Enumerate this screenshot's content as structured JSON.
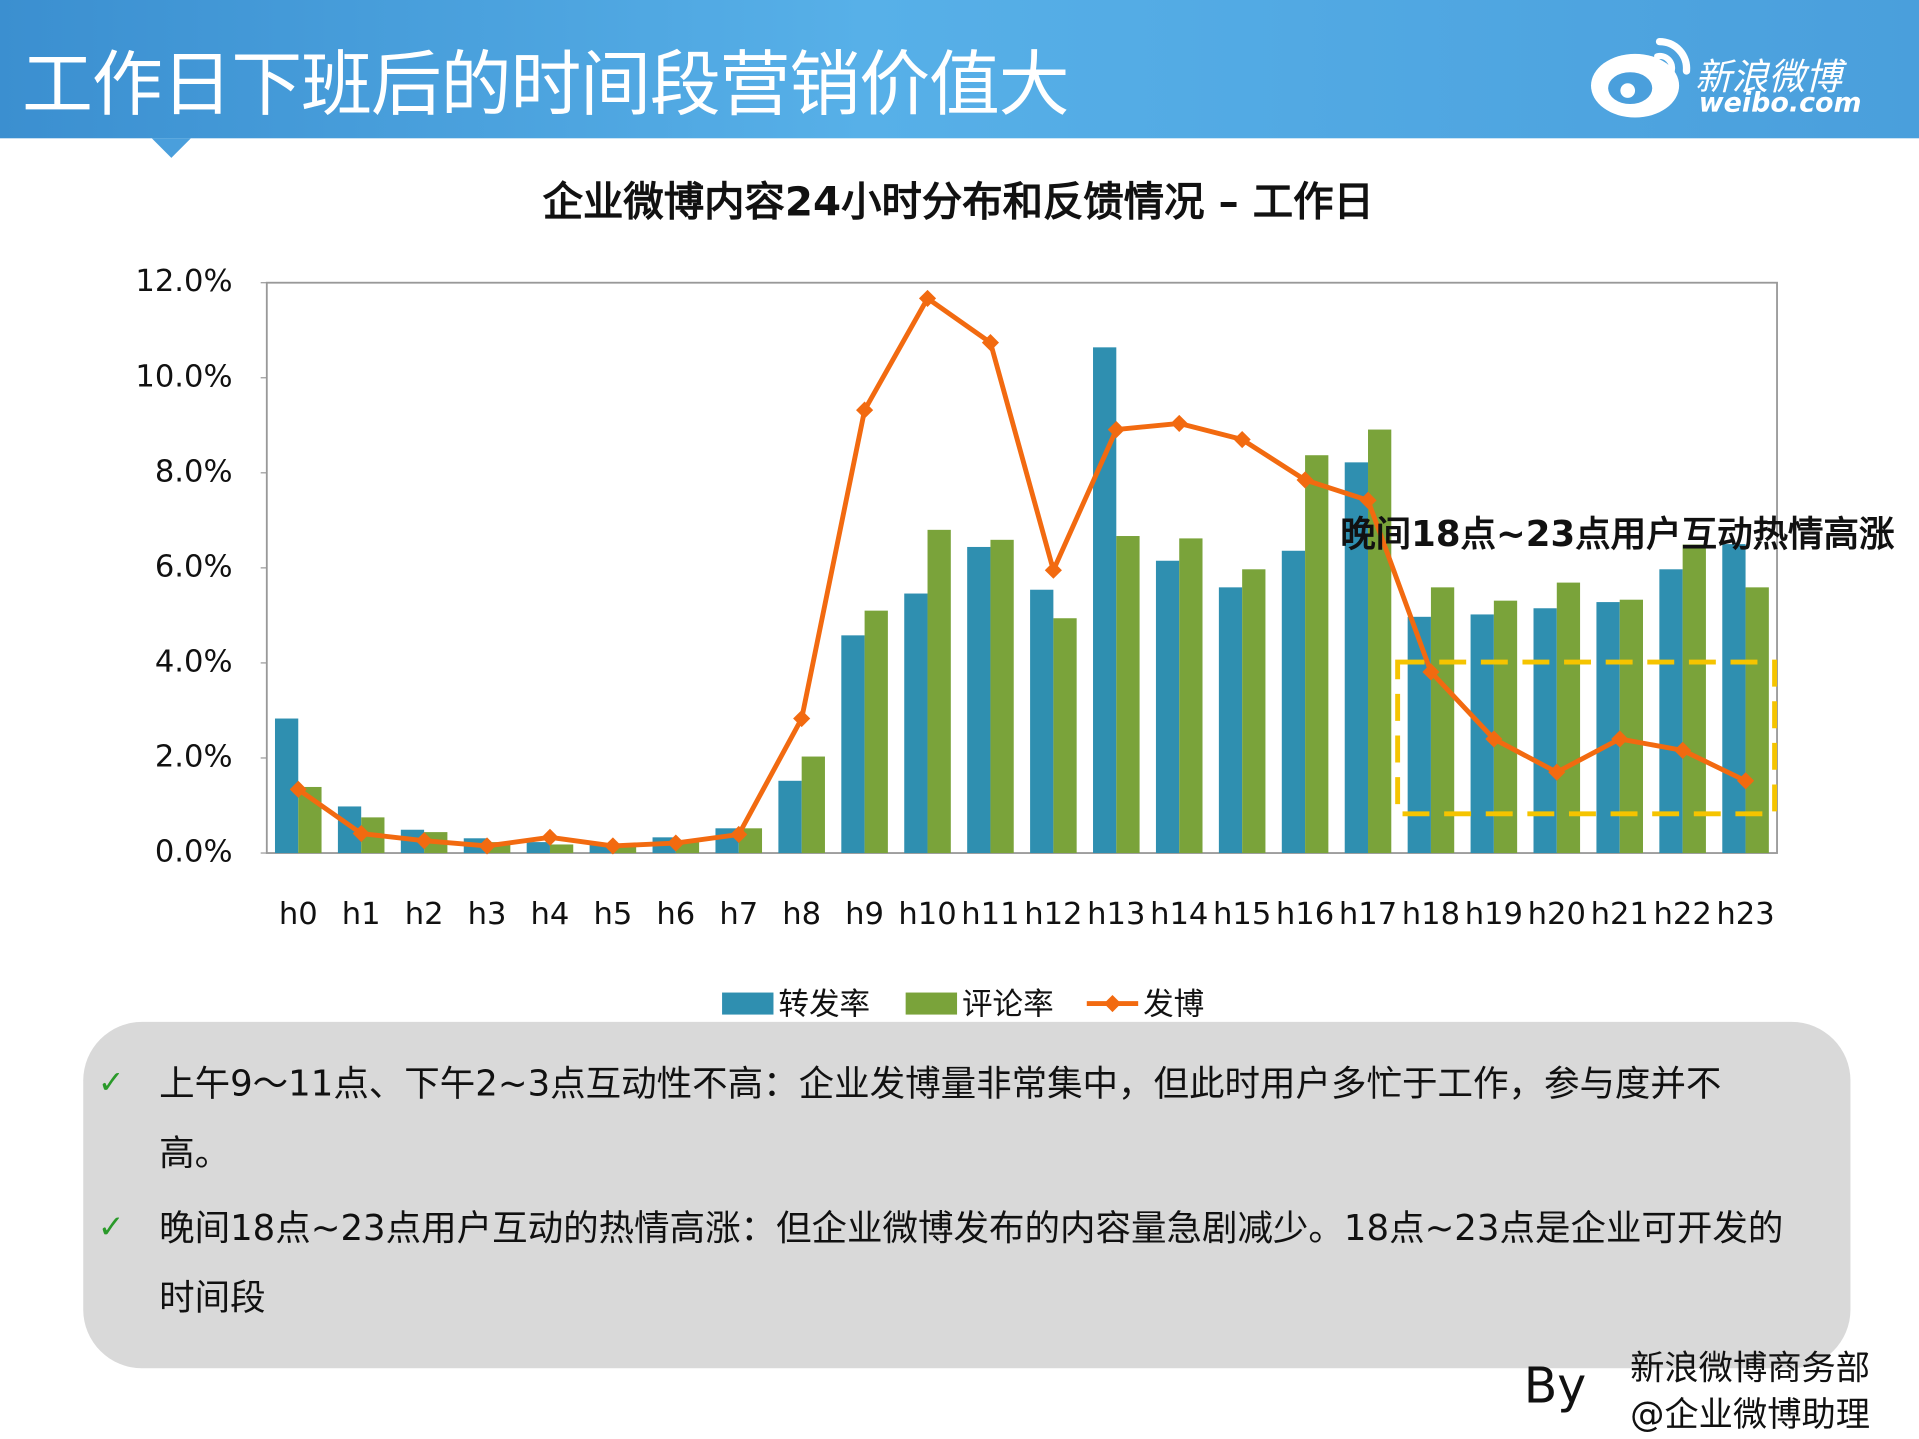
{
  "header": {
    "title": "工作日下班后的时间段营销价值大",
    "logo_name": "新浪微博",
    "logo_url": "weibo.com"
  },
  "chart_data": {
    "type": "bar-line",
    "title": "企业微博内容24小时分布和反馈情况 – 工作日",
    "categories": [
      "h0",
      "h1",
      "h2",
      "h3",
      "h4",
      "h5",
      "h6",
      "h7",
      "h8",
      "h9",
      "h10",
      "h11",
      "h12",
      "h13",
      "h14",
      "h15",
      "h16",
      "h17",
      "h18",
      "h19",
      "h20",
      "h21",
      "h22",
      "h23"
    ],
    "series": [
      {
        "name": "转发率",
        "type": "bar",
        "color": "#2f8fb0",
        "values": [
          2.83,
          0.98,
          0.49,
          0.31,
          0.23,
          0.18,
          0.33,
          0.52,
          1.52,
          4.58,
          5.46,
          6.44,
          5.54,
          10.64,
          6.15,
          5.59,
          6.36,
          8.22,
          4.97,
          5.02,
          5.15,
          5.28,
          5.97,
          6.5
        ]
      },
      {
        "name": "评论率",
        "type": "bar",
        "color": "#7aa33a",
        "values": [
          1.39,
          0.75,
          0.44,
          0.23,
          0.18,
          0.13,
          0.23,
          0.52,
          2.03,
          5.1,
          6.8,
          6.59,
          4.94,
          6.67,
          6.62,
          5.97,
          8.37,
          8.91,
          5.59,
          5.31,
          5.69,
          5.33,
          6.49,
          5.59
        ]
      },
      {
        "name": "发博",
        "type": "line",
        "color": "#f26a10",
        "values": [
          1.34,
          0.41,
          0.26,
          0.15,
          0.33,
          0.15,
          0.21,
          0.39,
          2.83,
          9.32,
          11.67,
          10.74,
          5.95,
          8.91,
          9.04,
          8.7,
          7.85,
          7.42,
          3.81,
          2.4,
          1.7,
          2.4,
          2.16,
          1.52
        ]
      }
    ],
    "ylim": [
      0,
      12
    ],
    "yticks": [
      {
        "value": 0,
        "label": "0.0%"
      },
      {
        "value": 2,
        "label": "2.0%"
      },
      {
        "value": 4,
        "label": "4.0%"
      },
      {
        "value": 6,
        "label": "6.0%"
      },
      {
        "value": 8,
        "label": "8.0%"
      },
      {
        "value": 10,
        "label": "10.0%"
      },
      {
        "value": 12,
        "label": "12.0%"
      }
    ],
    "grid": false,
    "legend": "bottom",
    "annotations": [
      "晚间18点~23点用户互动热情高涨"
    ]
  },
  "notes": [
    "上午9～11点、下午2~3点互动性不高：企业发博量非常集中，但此时用户多忙于工作，参与度并不高。",
    "晚间18点~23点用户互动的热情高涨：但企业微博发布的内容量急剧减少。18点~23点是企业可开发的时间段"
  ],
  "footer": {
    "by": "By",
    "dept": "新浪微博商务部",
    "account": "@企业微博助理"
  }
}
